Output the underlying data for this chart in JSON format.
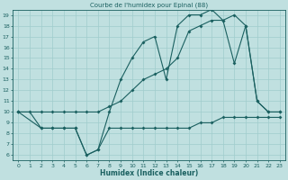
{
  "title": "Courbe de l'humidex pour Epinal (88)",
  "xlabel": "Humidex (Indice chaleur)",
  "bg_color": "#c0e0e0",
  "grid_color": "#a0cccc",
  "line_color": "#1a6060",
  "xlim": [
    -0.5,
    23.5
  ],
  "ylim": [
    5.5,
    19.5
  ],
  "yticks": [
    6,
    7,
    8,
    9,
    10,
    11,
    12,
    13,
    14,
    15,
    16,
    17,
    18,
    19
  ],
  "xticks": [
    0,
    1,
    2,
    3,
    4,
    5,
    6,
    7,
    8,
    9,
    10,
    11,
    12,
    13,
    14,
    15,
    16,
    17,
    18,
    19,
    20,
    21,
    22,
    23
  ],
  "line1_x": [
    0,
    1,
    2,
    3,
    4,
    5,
    6,
    7,
    8,
    9,
    10,
    11,
    12,
    13,
    14,
    15,
    16,
    17,
    18,
    19,
    20,
    21,
    22,
    23
  ],
  "line1_y": [
    10,
    10,
    8.5,
    8.5,
    8.5,
    8.5,
    6,
    6.5,
    8.5,
    8.5,
    8.5,
    8.5,
    8.5,
    8.5,
    8.5,
    8.5,
    9,
    9,
    9.5,
    9.5,
    9.5,
    9.5,
    9.5,
    9.5
  ],
  "line2_x": [
    0,
    2,
    3,
    4,
    5,
    6,
    7,
    8,
    9,
    10,
    11,
    12,
    13,
    14,
    15,
    16,
    17,
    18,
    19,
    20,
    21,
    22,
    23
  ],
  "line2_y": [
    10,
    8.5,
    8.5,
    8.5,
    8.5,
    6,
    6.5,
    10,
    13,
    15,
    16.5,
    17,
    13,
    18,
    19,
    19,
    19.5,
    18.5,
    14.5,
    18,
    11,
    10,
    10
  ],
  "line3_x": [
    0,
    2,
    3,
    4,
    5,
    6,
    7,
    8,
    9,
    10,
    11,
    12,
    13,
    14,
    15,
    16,
    17,
    18,
    19,
    20,
    21,
    22,
    23
  ],
  "line3_y": [
    10,
    10,
    10,
    10,
    10,
    10,
    10,
    10.5,
    11,
    12,
    13,
    13.5,
    14,
    15,
    17.5,
    18,
    18.5,
    18.5,
    19,
    18,
    11,
    10,
    10
  ]
}
